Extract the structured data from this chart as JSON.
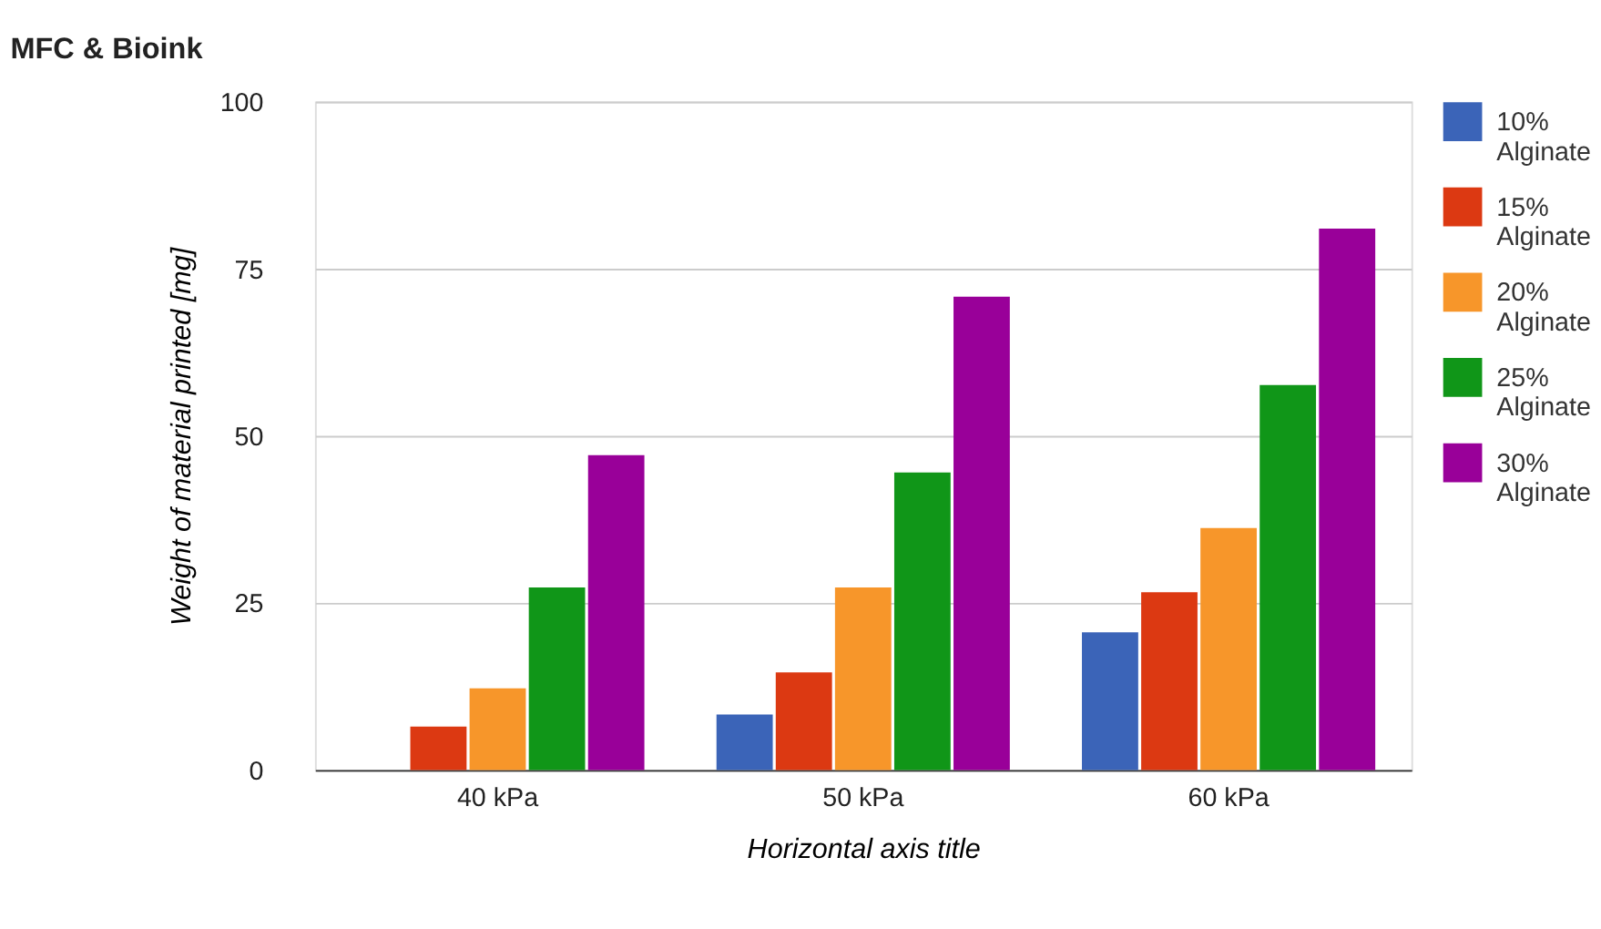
{
  "chart_data": {
    "type": "bar",
    "title": "MFC & Bioink",
    "xlabel": "Horizontal axis title",
    "ylabel": "Weight of material printed [mg]",
    "categories": [
      "40 kPa",
      "50 kPa",
      "60 kPa"
    ],
    "series": [
      {
        "name": "10% Alginate",
        "color": "#3b64b8",
        "values": [
          null,
          8.3,
          20.6
        ]
      },
      {
        "name": "15% Alginate",
        "color": "#dc3912",
        "values": [
          6.5,
          14.6,
          26.6
        ]
      },
      {
        "name": "20% Alginate",
        "color": "#f7962a",
        "values": [
          12.2,
          27.3,
          36.2
        ]
      },
      {
        "name": "25% Alginate",
        "color": "#109618",
        "values": [
          27.3,
          44.5,
          57.6
        ]
      },
      {
        "name": "30% Alginate",
        "color": "#990099",
        "values": [
          47.1,
          70.8,
          81.0
        ]
      }
    ],
    "ylim": [
      0,
      100
    ],
    "yticks": [
      0,
      25,
      50,
      75,
      100
    ],
    "grid": "y",
    "legend": "right"
  }
}
